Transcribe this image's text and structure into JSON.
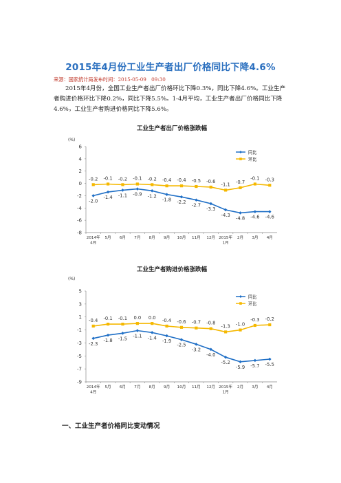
{
  "article": {
    "title": "2015年4月份工业生产者出厂价格同比下降4.6%",
    "source_label": "来源：国家统计局发布时间：2015-05-09　09:30",
    "paragraph": "2015年4月份，全国工业生产者出厂价格环比下降0.3%，同比下降4.6%。工业生产者购进价格环比下降0.2%，同比下降5.5%。1-4月平均，工业生产者出厂价格同比下降4.6%，工业生产者购进价格同比下降5.6%。",
    "section_heading": "一、工业生产者价格同比变动情况"
  },
  "colors": {
    "yoy": "#1f6fc6",
    "mom": "#f5b800",
    "title": "#2a6fbf",
    "source": "#c0392b"
  },
  "chart_data": [
    {
      "type": "line",
      "title": "工业生产者出厂价格涨跌幅",
      "ylabel": "(%)",
      "ylim": [
        -8,
        6
      ],
      "yticks": [
        6,
        4,
        2,
        0,
        -2,
        -4,
        -6,
        -8
      ],
      "categories": [
        "2014年4月",
        "5月",
        "6月",
        "7月",
        "8月",
        "9月",
        "10月",
        "11月",
        "12月",
        "2015年1月",
        "2月",
        "3月",
        "4月"
      ],
      "category_lines": [
        [
          "2014年",
          "4月"
        ],
        [
          "5月"
        ],
        [
          "6月"
        ],
        [
          "7月"
        ],
        [
          "8月"
        ],
        [
          "9月"
        ],
        [
          "10月"
        ],
        [
          "11月"
        ],
        [
          "12月"
        ],
        [
          "2015年",
          "1月"
        ],
        [
          "2月"
        ],
        [
          "3月"
        ],
        [
          "4月"
        ]
      ],
      "series": [
        {
          "name": "同比",
          "values": [
            -2.0,
            -1.4,
            -1.1,
            -0.9,
            -1.2,
            -1.8,
            -2.2,
            -2.7,
            -3.3,
            -4.3,
            -4.8,
            -4.6,
            -4.6
          ]
        },
        {
          "name": "环比",
          "values": [
            -0.2,
            -0.1,
            -0.2,
            -0.1,
            -0.2,
            -0.4,
            -0.4,
            -0.5,
            -0.6,
            -1.1,
            -0.7,
            -0.1,
            -0.3
          ]
        }
      ],
      "legend": "top-right",
      "grid": false
    },
    {
      "type": "line",
      "title": "工业生产者购进价格涨跌幅",
      "ylabel": "(%)",
      "ylim": [
        -9,
        5
      ],
      "yticks": [
        5,
        3,
        1,
        -1,
        -3,
        -5,
        -7,
        -9
      ],
      "categories": [
        "2014年4月",
        "5月",
        "6月",
        "7月",
        "8月",
        "9月",
        "10月",
        "11月",
        "12月",
        "2015年1月",
        "2月",
        "3月",
        "4月"
      ],
      "category_lines": [
        [
          "2014年",
          "4月"
        ],
        [
          "5月"
        ],
        [
          "6月"
        ],
        [
          "7月"
        ],
        [
          "8月"
        ],
        [
          "9月"
        ],
        [
          "10月"
        ],
        [
          "11月"
        ],
        [
          "12月"
        ],
        [
          "2015年",
          "1月"
        ],
        [
          "2月"
        ],
        [
          "3月"
        ],
        [
          "4月"
        ]
      ],
      "series": [
        {
          "name": "同比",
          "values": [
            -2.3,
            -1.8,
            -1.5,
            -1.1,
            -1.4,
            -1.9,
            -2.5,
            -3.2,
            -4.0,
            -5.2,
            -5.9,
            -5.7,
            -5.5
          ]
        },
        {
          "name": "环比",
          "values": [
            -0.4,
            -0.1,
            -0.1,
            0.0,
            0.0,
            -0.4,
            -0.6,
            -0.7,
            -0.8,
            -1.3,
            -1.0,
            -0.3,
            -0.2
          ]
        }
      ],
      "legend": "top-right",
      "grid": false
    }
  ]
}
